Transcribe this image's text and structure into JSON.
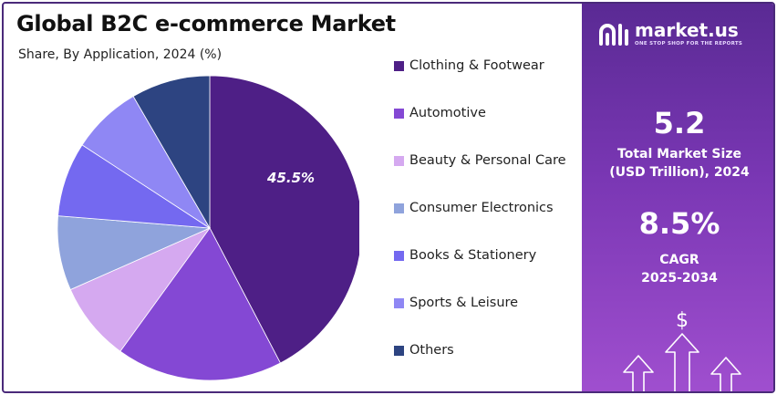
{
  "title": "Global B2C e-commerce Market",
  "subtitle": "Share, By Application, 2024 (%)",
  "brand": {
    "name": "market.us",
    "tagline": "ONE STOP SHOP FOR THE REPORTS"
  },
  "stats": {
    "market_size_value": "5.2",
    "market_size_label_1": "Total Market Size",
    "market_size_label_2": "(USD Trillion), 2024",
    "cagr_value": "8.5%",
    "cagr_label_1": "CAGR",
    "cagr_label_2": "2025-2034"
  },
  "icons": {
    "dollar": "$"
  },
  "colors": {
    "panel_top": "#5a2a94",
    "panel_bottom": "#a04fcf"
  },
  "chart_data": {
    "type": "pie",
    "title": "Global B2C e-commerce Market",
    "subtitle": "Share, By Application, 2024 (%)",
    "legend_position": "right",
    "slices": [
      {
        "label": "Clothing & Footwear",
        "value": 45.5,
        "color": "#4e1f86",
        "data_label": "45.5%"
      },
      {
        "label": "Automotive",
        "value": 19.0,
        "color": "#8448d4",
        "data_label": ""
      },
      {
        "label": "Beauty & Personal Care",
        "value": 9.0,
        "color": "#d5a9f0",
        "data_label": ""
      },
      {
        "label": "Consumer Electronics",
        "value": 8.5,
        "color": "#8fa3dc",
        "data_label": ""
      },
      {
        "label": "Books & Stationery",
        "value": 8.5,
        "color": "#7469f0",
        "data_label": ""
      },
      {
        "label": "Sports & Leisure",
        "value": 8.0,
        "color": "#8f87f4",
        "data_label": ""
      },
      {
        "label": "Others",
        "value": 9.0,
        "color": "#2d4481",
        "data_label": ""
      }
    ]
  }
}
